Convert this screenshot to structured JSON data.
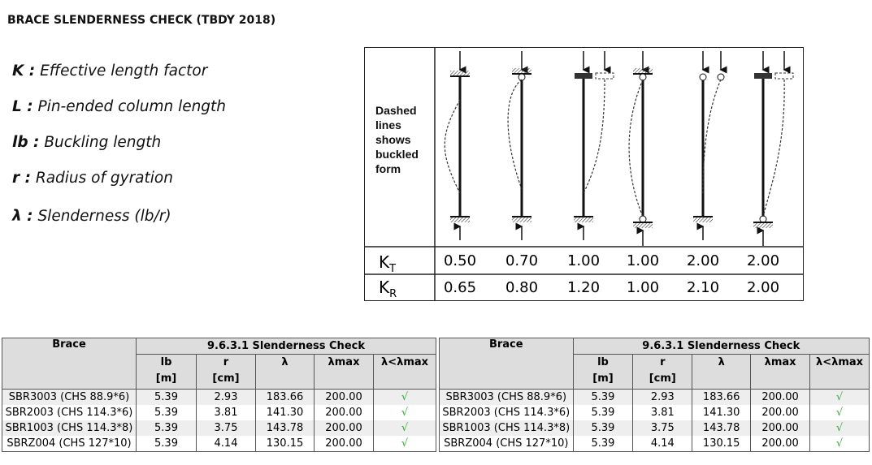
{
  "title": "BRACE SLENDERNESS CHECK (TBDY 2018)",
  "definitions": [
    {
      "sym": "K :",
      "text": "Effective length factor"
    },
    {
      "sym": "L :",
      "text": "Pin-ended column length"
    },
    {
      "sym": "lb :",
      "text": "Buckling length"
    },
    {
      "sym": "r :",
      "text": "Radius of gyration"
    },
    {
      "sym": "λ :",
      "text": "Slenderness (lb/r)"
    }
  ],
  "diagram": {
    "note": "Dashed lines shows buckled form",
    "kt_label": "KT",
    "kr_label": "KR",
    "kt": [
      "0.50",
      "0.70",
      "1.00",
      "1.00",
      "2.00",
      "2.00"
    ],
    "kr": [
      "0.65",
      "0.80",
      "1.20",
      "1.00",
      "2.10",
      "2.00"
    ]
  },
  "table": {
    "h_brace": "Brace",
    "h_group": "9.6.3.1 Slenderness Check",
    "h_lb": "lb",
    "u_lb": "[m]",
    "h_r": "r",
    "u_r": "[cm]",
    "h_lambda": "λ",
    "h_lmax": "λmax",
    "h_check": "λ<λmax",
    "rows": [
      {
        "brace": "SBR3003 (CHS 88.9*6)",
        "lb": "5.39",
        "r": "2.93",
        "lambda": "183.66",
        "lmax": "200.00",
        "check": "√"
      },
      {
        "brace": "SBR2003 (CHS 114.3*6)",
        "lb": "5.39",
        "r": "3.81",
        "lambda": "141.30",
        "lmax": "200.00",
        "check": "√"
      },
      {
        "brace": "SBR1003 (CHS 114.3*8)",
        "lb": "5.39",
        "r": "3.75",
        "lambda": "143.78",
        "lmax": "200.00",
        "check": "√"
      },
      {
        "brace": "SBRZ004 (CHS 127*10)",
        "lb": "5.39",
        "r": "4.14",
        "lambda": "130.15",
        "lmax": "200.00",
        "check": "√"
      }
    ]
  },
  "colors": {
    "check": "#33aa33",
    "header_bg": "#dddddd"
  }
}
